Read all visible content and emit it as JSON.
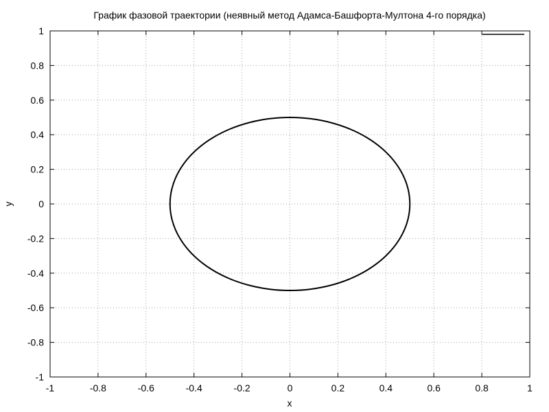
{
  "chart_data": {
    "type": "line",
    "title": "График фазовой траектории (неявный метод Адамса-Башфорта-Мултона 4-го порядка)",
    "xlabel": "x",
    "ylabel": "y",
    "xlim": [
      -1,
      1
    ],
    "ylim": [
      -1,
      1
    ],
    "xticks": [
      "-1",
      "-0.8",
      "-0.6",
      "-0.4",
      "-0.2",
      "0",
      "0.2",
      "0.4",
      "0.6",
      "0.8",
      "1"
    ],
    "yticks": [
      "-1",
      "-0.8",
      "-0.6",
      "-0.4",
      "-0.2",
      "0",
      "0.2",
      "0.4",
      "0.6",
      "0.8",
      "1"
    ],
    "grid": true,
    "legend_position": "top-right",
    "legend_entries": [
      ""
    ],
    "series": [
      {
        "color": "#000000",
        "x": [
          0.5,
          0.4924,
          0.4698,
          0.433,
          0.383,
          0.3214,
          0.25,
          0.171,
          0.0868,
          0,
          -0.0868,
          -0.171,
          -0.25,
          -0.3214,
          -0.383,
          -0.433,
          -0.4698,
          -0.4924,
          -0.5,
          -0.4924,
          -0.4698,
          -0.433,
          -0.383,
          -0.3214,
          -0.25,
          -0.171,
          -0.0868,
          0,
          0.0868,
          0.171,
          0.25,
          0.3214,
          0.383,
          0.433,
          0.4698,
          0.4924,
          0.5
        ],
        "y": [
          0,
          0.0868,
          0.171,
          0.25,
          0.3214,
          0.383,
          0.433,
          0.4698,
          0.4924,
          0.5,
          0.4924,
          0.4698,
          0.433,
          0.383,
          0.3214,
          0.25,
          0.171,
          0.0868,
          0,
          -0.0868,
          -0.171,
          -0.25,
          -0.3214,
          -0.383,
          -0.433,
          -0.4698,
          -0.4924,
          -0.5,
          -0.4924,
          -0.4698,
          -0.433,
          -0.383,
          -0.3214,
          -0.25,
          -0.171,
          -0.0868,
          0
        ]
      }
    ]
  }
}
